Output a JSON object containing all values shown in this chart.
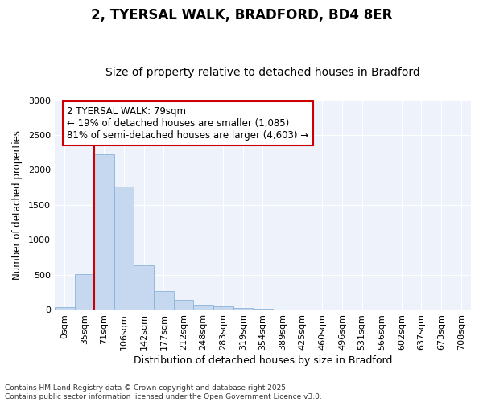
{
  "title": "2, TYERSAL WALK, BRADFORD, BD4 8ER",
  "subtitle": "Size of property relative to detached houses in Bradford",
  "xlabel": "Distribution of detached houses by size in Bradford",
  "ylabel": "Number of detached properties",
  "categories": [
    "0sqm",
    "35sqm",
    "71sqm",
    "106sqm",
    "142sqm",
    "177sqm",
    "212sqm",
    "248sqm",
    "283sqm",
    "319sqm",
    "354sqm",
    "389sqm",
    "425sqm",
    "460sqm",
    "496sqm",
    "531sqm",
    "566sqm",
    "602sqm",
    "637sqm",
    "673sqm",
    "708sqm"
  ],
  "values": [
    30,
    510,
    2220,
    1760,
    635,
    260,
    140,
    75,
    50,
    25,
    10,
    5,
    3,
    1,
    0,
    0,
    0,
    0,
    0,
    0,
    0
  ],
  "bar_color": "#c6d8f0",
  "bar_edge_color": "#8ab4d8",
  "plot_bg_color": "#edf2fb",
  "grid_color": "#ffffff",
  "fig_bg_color": "#ffffff",
  "vline_color": "#cc0000",
  "vline_x_index": 2,
  "annotation_text": "2 TYERSAL WALK: 79sqm\n← 19% of detached houses are smaller (1,085)\n81% of semi-detached houses are larger (4,603) →",
  "annotation_box_edge_color": "#cc0000",
  "ylim": [
    0,
    3000
  ],
  "yticks": [
    0,
    500,
    1000,
    1500,
    2000,
    2500,
    3000
  ],
  "footnote": "Contains HM Land Registry data © Crown copyright and database right 2025.\nContains public sector information licensed under the Open Government Licence v3.0.",
  "title_fontsize": 12,
  "subtitle_fontsize": 10,
  "xlabel_fontsize": 9,
  "ylabel_fontsize": 8.5,
  "tick_fontsize": 8,
  "annotation_fontsize": 8.5,
  "footnote_fontsize": 6.5
}
